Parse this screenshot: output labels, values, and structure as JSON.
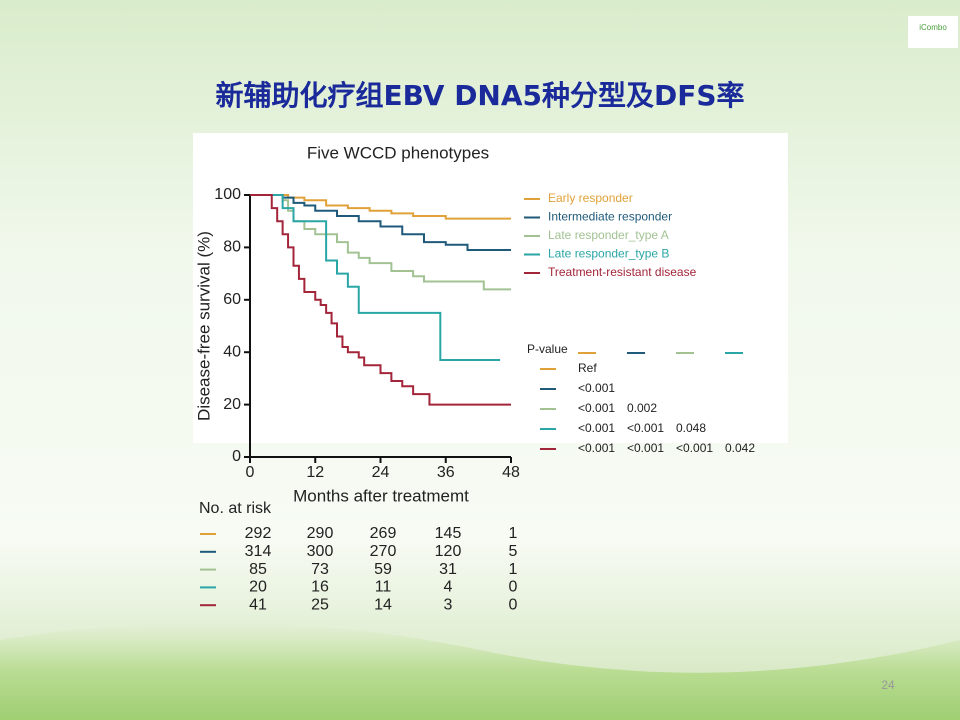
{
  "slide": {
    "title": "新辅助化疗组EBV DNA5种分型及DFS率",
    "page_number": "24",
    "logo": "iCombo"
  },
  "chart_data": {
    "type": "line",
    "step": true,
    "title": "Five WCCD phenotypes",
    "x_label": "Months after treatmemt",
    "y_label": "Disease-free survival (%)",
    "xlim": [
      0,
      48
    ],
    "xticks": [
      0,
      12,
      24,
      36,
      48
    ],
    "ylim": [
      0,
      100
    ],
    "yticks": [
      0,
      20,
      40,
      60,
      80,
      100
    ],
    "legend_position": "upper right",
    "series": [
      {
        "name": "Early responder",
        "color": "#e0a238",
        "x": [
          0,
          7,
          10,
          14,
          18,
          22,
          26,
          30,
          36,
          48
        ],
        "values": [
          100,
          99,
          98,
          96,
          95,
          94,
          93,
          92,
          91,
          91
        ]
      },
      {
        "name": "Intermediate responder",
        "color": "#1f5a7a",
        "x": [
          0,
          6,
          8,
          10,
          12,
          16,
          20,
          24,
          28,
          32,
          36,
          40,
          48
        ],
        "values": [
          100,
          99,
          97,
          96,
          94,
          92,
          90,
          88,
          85,
          82,
          81,
          79,
          79
        ]
      },
      {
        "name": "Late responder_type A",
        "color": "#a2c293",
        "x": [
          0,
          6,
          7,
          8,
          10,
          12,
          16,
          18,
          20,
          22,
          26,
          30,
          32,
          43,
          48
        ],
        "values": [
          100,
          98,
          94,
          90,
          87,
          85,
          82,
          78,
          76,
          74,
          71,
          69,
          67,
          64,
          64
        ]
      },
      {
        "name": "Late responder_type B",
        "color": "#2aa6a6",
        "x": [
          0,
          6,
          8,
          14,
          16,
          18,
          20,
          34,
          35,
          46
        ],
        "values": [
          100,
          95,
          90,
          75,
          70,
          65,
          55,
          55,
          37,
          37
        ]
      },
      {
        "name": "Treatment-resistant disease",
        "color": "#a3253a",
        "x": [
          0,
          4,
          5,
          6,
          7,
          8,
          9,
          10,
          12,
          13,
          14,
          15,
          16,
          17,
          18,
          20,
          21,
          24,
          26,
          28,
          30,
          33,
          48
        ],
        "values": [
          100,
          95,
          90,
          85,
          80,
          73,
          68,
          63,
          60,
          58,
          55,
          51,
          46,
          42,
          40,
          38,
          35,
          32,
          29,
          27,
          24,
          20,
          20
        ]
      }
    ],
    "pvalue_table": {
      "title": "P-value",
      "rows": [
        [
          "Ref"
        ],
        [
          "<0.001"
        ],
        [
          "<0.001",
          "0.002"
        ],
        [
          "<0.001",
          "<0.001",
          "0.048"
        ],
        [
          "<0.001",
          "<0.001",
          "<0.001",
          "0.042"
        ]
      ]
    },
    "risk_table": {
      "title": "No. at risk",
      "rows": [
        [
          "292",
          "290",
          "269",
          "145",
          "1"
        ],
        [
          "314",
          "300",
          "270",
          "120",
          "5"
        ],
        [
          "85",
          "73",
          "59",
          "31",
          "1"
        ],
        [
          "20",
          "16",
          "11",
          "4",
          "0"
        ],
        [
          "41",
          "25",
          "14",
          "3",
          "0"
        ]
      ]
    }
  }
}
